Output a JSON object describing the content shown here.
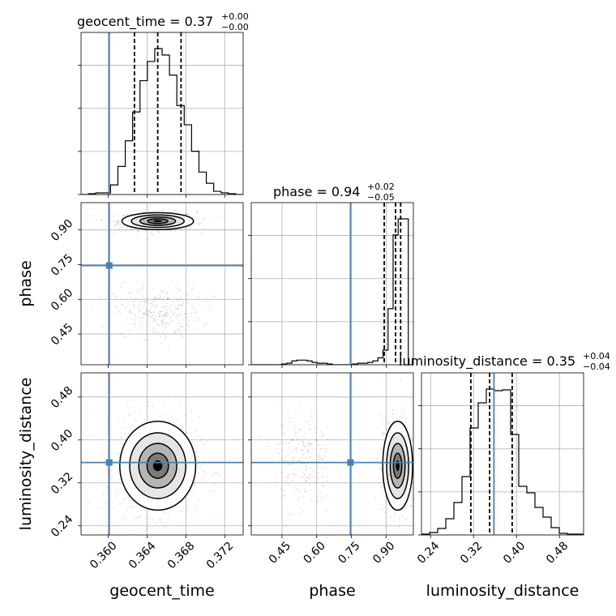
{
  "chart_data": {
    "type": "corner",
    "parameters": [
      "geocent_time",
      "phase",
      "luminosity_distance"
    ],
    "titles": [
      {
        "param": "geocent_time",
        "label": "geocent_time = 0.37",
        "sup": "+0.00",
        "sub": "−0.00"
      },
      {
        "param": "phase",
        "label": "phase = 0.94",
        "sup": "+0.02",
        "sub": "−0.05"
      },
      {
        "param": "luminosity_distance",
        "label": "luminosity_distance = 0.35",
        "sup": "+0.04",
        "sub": "−0.04"
      }
    ],
    "axes": {
      "geocent_time": {
        "range": [
          0.3572,
          0.3739
        ],
        "ticks": [
          "0.360",
          "0.364",
          "0.368",
          "0.372"
        ],
        "tick_values": [
          0.36,
          0.364,
          0.368,
          0.372
        ]
      },
      "phase": {
        "range": [
          0.317,
          1.018
        ],
        "ticks": [
          "0.45",
          "0.60",
          "0.75",
          "0.90"
        ],
        "tick_values": [
          0.45,
          0.6,
          0.75,
          0.9
        ]
      },
      "luminosity_distance": {
        "range": [
          0.223,
          0.525
        ],
        "ticks": [
          "0.24",
          "0.32",
          "0.40",
          "0.48"
        ],
        "tick_values": [
          0.24,
          0.32,
          0.4,
          0.48
        ]
      }
    },
    "truths": {
      "geocent_time": 0.3601,
      "phase": 0.746,
      "luminosity_distance": 0.358
    },
    "quantiles": {
      "geocent_time": [
        0.3627,
        0.3651,
        0.3675
      ],
      "phase": [
        0.892,
        0.941,
        0.963
      ],
      "luminosity_distance": [
        0.315,
        0.35,
        0.392
      ]
    },
    "histograms": {
      "geocent_time": {
        "range": [
          0.3572,
          0.3739
        ],
        "counts": [
          0,
          1,
          2,
          2,
          12,
          35,
          67,
          103,
          142,
          166,
          182,
          174,
          149,
          111,
          87,
          54,
          28,
          14,
          4,
          2,
          1,
          0
        ]
      },
      "phase": {
        "range": [
          0.317,
          1.018
        ],
        "counts": [
          0,
          0,
          0,
          0,
          0,
          0,
          1,
          2,
          5,
          6,
          6,
          5,
          3,
          2,
          2,
          1,
          0,
          0,
          0,
          0,
          1,
          2,
          2,
          3,
          5,
          9,
          19,
          73,
          169,
          190,
          190,
          0
        ]
      },
      "luminosity_distance": {
        "range": [
          0.223,
          0.525
        ],
        "counts": [
          1,
          3,
          8,
          20,
          40,
          72,
          132,
          163,
          180,
          178,
          179,
          124,
          60,
          52,
          34,
          22,
          9,
          2,
          1,
          1
        ]
      }
    },
    "scatter_blobs": {
      "geocent_time_vs_phase": [
        {
          "cx": 0.3651,
          "cy": 0.938,
          "sx": 0.0016,
          "sy": 0.016,
          "n": 700
        },
        {
          "cx": 0.3651,
          "cy": 0.545,
          "sx": 0.0018,
          "sy": 0.045,
          "n": 320
        }
      ],
      "geocent_time_vs_luminosity_distance": [
        {
          "cx": 0.3651,
          "cy": 0.352,
          "sx": 0.0017,
          "sy": 0.036,
          "n": 900
        }
      ],
      "phase_vs_luminosity_distance": [
        {
          "cx": 0.95,
          "cy": 0.352,
          "sx": 0.028,
          "sy": 0.036,
          "n": 600
        },
        {
          "cx": 0.54,
          "cy": 0.36,
          "sx": 0.05,
          "sy": 0.04,
          "n": 260
        }
      ]
    },
    "axis_labels": {
      "x": [
        "geocent_time",
        "phase",
        "luminosity_distance"
      ],
      "y": [
        "phase",
        "luminosity_distance"
      ]
    }
  }
}
